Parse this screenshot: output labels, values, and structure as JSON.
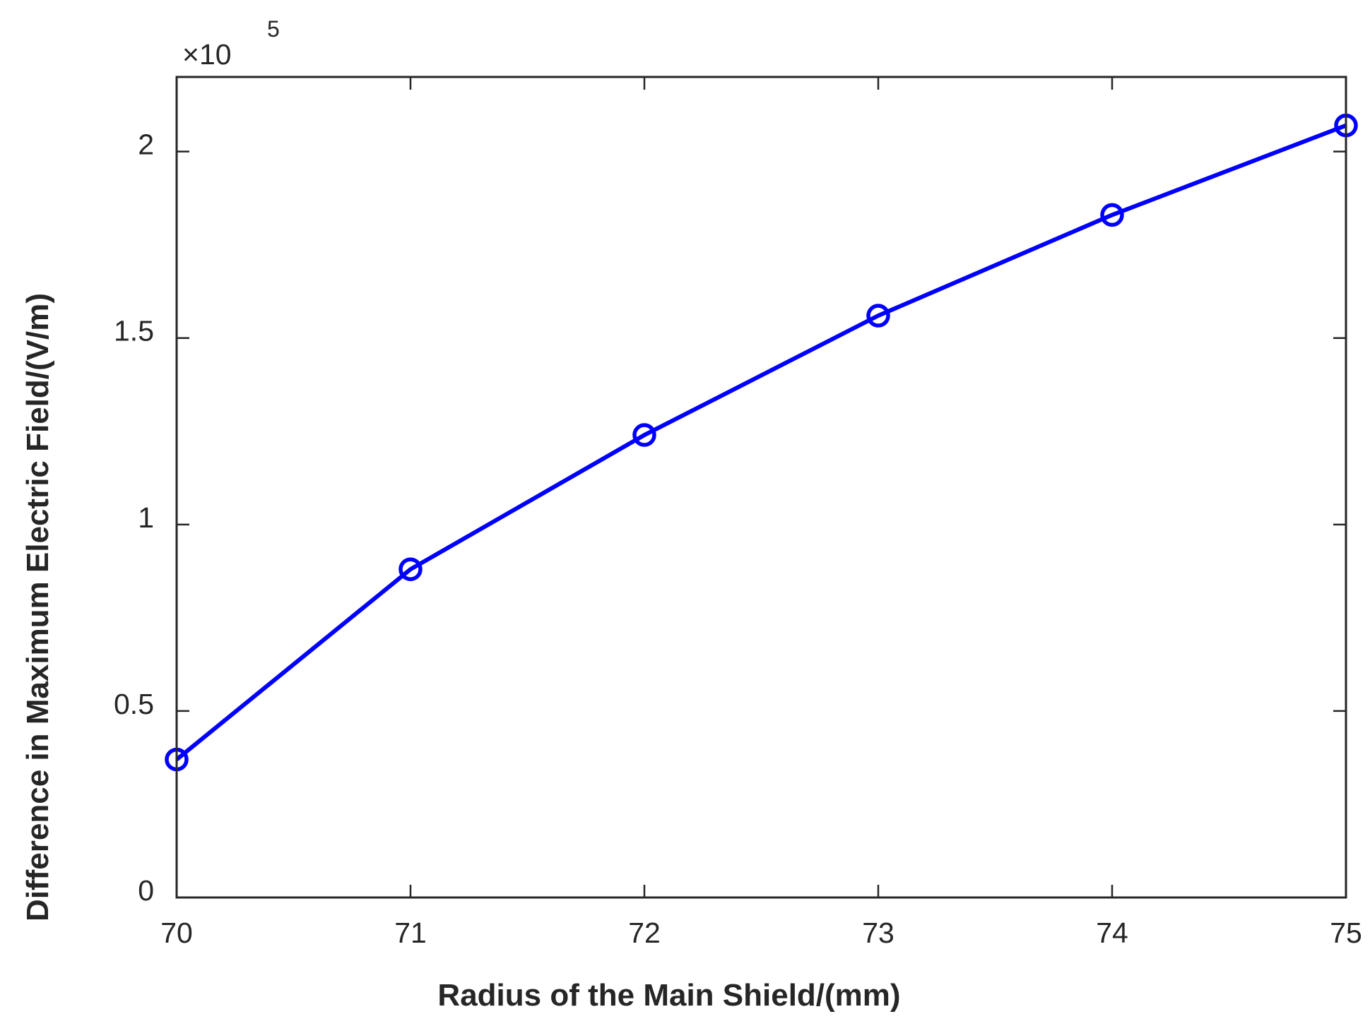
{
  "chart_data": {
    "type": "line",
    "title": "",
    "xlabel": "Radius of the Main Shield/(mm)",
    "ylabel": "Difference in Maximum Electric Field/(V/m)",
    "x": [
      70,
      71,
      72,
      73,
      74,
      75
    ],
    "series": [
      {
        "values": [
          37000,
          88000,
          124000,
          156000,
          183000,
          207000
        ],
        "color": "#0000ff",
        "marker": "circle"
      }
    ],
    "xlim": [
      70,
      75
    ],
    "ylim": [
      0,
      220000
    ],
    "xticks": [
      70,
      71,
      72,
      73,
      74,
      75
    ],
    "yticks": [
      0,
      50000,
      100000,
      150000,
      200000
    ],
    "xtick_labels": [
      "70",
      "71",
      "72",
      "73",
      "74",
      "75"
    ],
    "ytick_labels": [
      "0",
      "0.5",
      "1",
      "1.5",
      "2"
    ],
    "y_exponent": {
      "base": "×10",
      "power": "5"
    },
    "grid": false,
    "legend": "none"
  }
}
